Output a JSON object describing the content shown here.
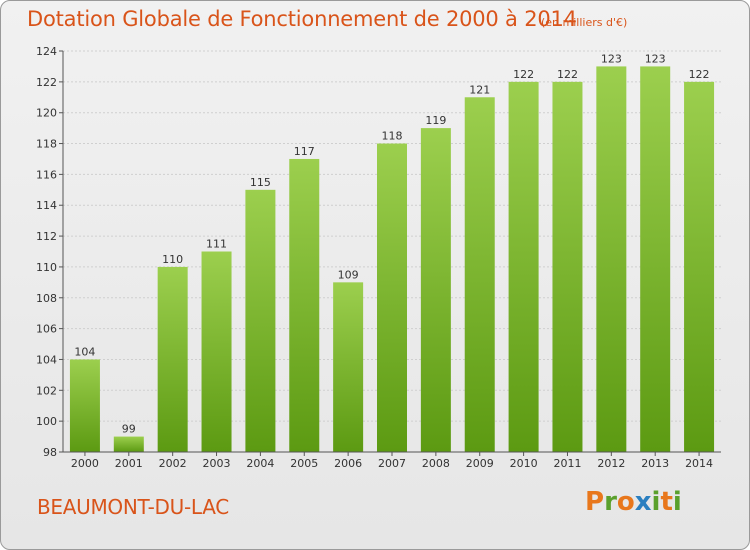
{
  "chart_data": {
    "type": "bar",
    "title": "Dotation Globale de Fonctionnement de 2000 à 2014",
    "subtitle": "(en milliers d'€)",
    "categories": [
      "2000",
      "2001",
      "2002",
      "2003",
      "2004",
      "2005",
      "2006",
      "2007",
      "2008",
      "2009",
      "2010",
      "2011",
      "2012",
      "2013",
      "2014"
    ],
    "values": [
      104,
      99,
      110,
      111,
      115,
      117,
      109,
      118,
      119,
      121,
      122,
      122,
      123,
      123,
      122
    ],
    "ylim": [
      98,
      124
    ],
    "yticks": [
      98,
      100,
      102,
      104,
      106,
      108,
      110,
      112,
      114,
      116,
      118,
      120,
      122,
      124
    ],
    "xlabel": "",
    "ylabel": "",
    "grid": true
  },
  "footer": {
    "city": "BEAUMONT-DU-LAC",
    "logo": [
      "P",
      "r",
      "o",
      "x",
      "i",
      "t",
      "i"
    ]
  },
  "colors": {
    "accent": "#d9541a",
    "bar_light": "#9ccf4e",
    "bar_dark": "#5c9a12",
    "logo": [
      "#e8771c",
      "#5aa02c",
      "#e8771c",
      "#2a7fc0",
      "#5aa02c",
      "#e8771c",
      "#5aa02c"
    ]
  }
}
